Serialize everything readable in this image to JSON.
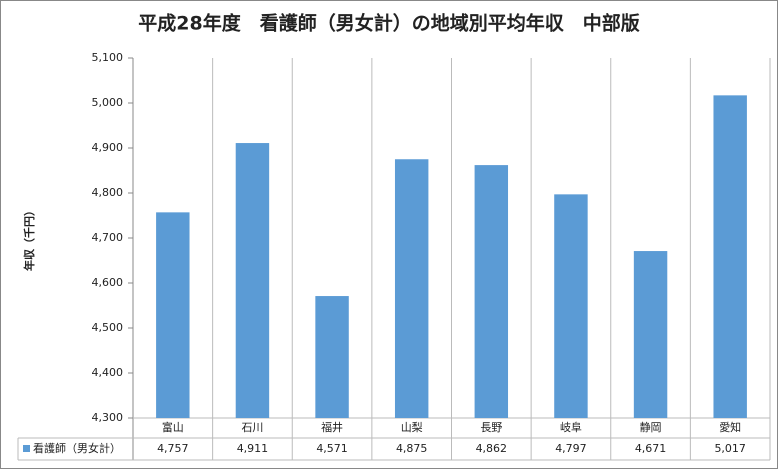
{
  "chart_data": {
    "type": "bar",
    "title": "平成28年度　看護師（男女計）の地域別平均年収　中部版",
    "y_axis_label": "年収（千円）",
    "categories": [
      "富山",
      "石川",
      "福井",
      "山梨",
      "長野",
      "岐阜",
      "静岡",
      "愛知"
    ],
    "series": [
      {
        "name": "看護師（男女計）",
        "color": "#5b9bd5",
        "values": [
          4757,
          4911,
          4571,
          4875,
          4862,
          4797,
          4671,
          5017
        ],
        "value_labels": [
          "4,757",
          "4,911",
          "4,571",
          "4,875",
          "4,862",
          "4,797",
          "4,671",
          "5,017"
        ]
      }
    ],
    "ylim": [
      4300,
      5100
    ],
    "yticks": [
      {
        "value": 4300,
        "label": "4,300"
      },
      {
        "value": 4400,
        "label": "4,400"
      },
      {
        "value": 4500,
        "label": "4,500"
      },
      {
        "value": 4600,
        "label": "4,600"
      },
      {
        "value": 4700,
        "label": "4,700"
      },
      {
        "value": 4800,
        "label": "4,800"
      },
      {
        "value": 4900,
        "label": "4,900"
      },
      {
        "value": 5000,
        "label": "5,000"
      },
      {
        "value": 5100,
        "label": "5,100"
      }
    ],
    "data_table": true
  }
}
